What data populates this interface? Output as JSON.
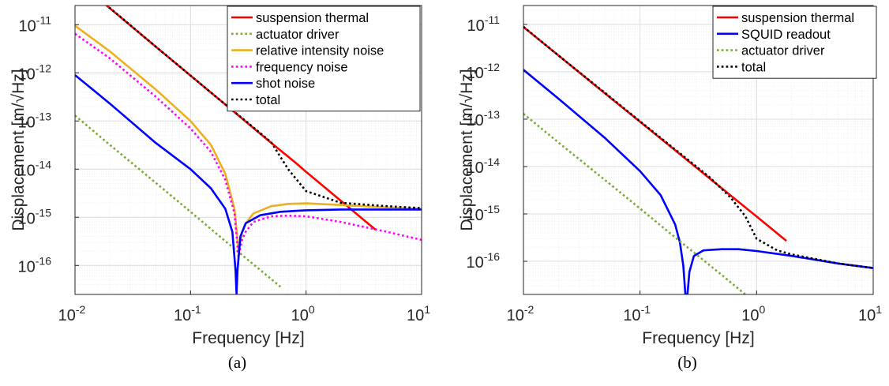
{
  "chart_data": [
    {
      "type": "line",
      "caption": "(a)",
      "xlabel": "Frequency [Hz]",
      "ylabel": "Displacement [m/√Hz]",
      "xscale": "log",
      "yscale": "log",
      "xlim": [
        0.01,
        10
      ],
      "ylim": [
        2.5e-17,
        2.5e-11
      ],
      "xticks": [
        {
          "base": "10",
          "exp": "-2"
        },
        {
          "base": "10",
          "exp": "-1"
        },
        {
          "base": "10",
          "exp": "0"
        },
        {
          "base": "10",
          "exp": "1"
        }
      ],
      "yticks": [
        {
          "base": "10",
          "exp": "-16"
        },
        {
          "base": "10",
          "exp": "-15"
        },
        {
          "base": "10",
          "exp": "-14"
        },
        {
          "base": "10",
          "exp": "-13"
        },
        {
          "base": "10",
          "exp": "-12"
        },
        {
          "base": "10",
          "exp": "-11"
        }
      ],
      "grid": true,
      "legend_position": "top-right",
      "series": [
        {
          "name": "suspension thermal",
          "color": "#ff0000",
          "style": "solid",
          "x": [
            0.01,
            0.02,
            0.05,
            0.1,
            0.2,
            0.5,
            0.8,
            1,
            2,
            4
          ],
          "y": [
            8.8e-11,
            2.2e-11,
            3.5e-12,
            8.8e-13,
            2.2e-13,
            3.5e-14,
            1.4e-14,
            8.8e-15,
            2.2e-15,
            5.5e-16
          ]
        },
        {
          "name": "actuator driver",
          "color": "#77ac30",
          "style": "dotted",
          "x": [
            0.01,
            0.02,
            0.05,
            0.1,
            0.2,
            0.5,
            0.6
          ],
          "y": [
            1.3e-13,
            3.2e-14,
            5.2e-15,
            1.3e-15,
            3.2e-16,
            5.2e-17,
            3.6e-17
          ]
        },
        {
          "name": "relative intensity noise",
          "color": "#edb120",
          "style": "solid",
          "x": [
            0.01,
            0.02,
            0.05,
            0.1,
            0.15,
            0.2,
            0.24,
            0.26,
            0.28,
            0.3,
            0.35,
            0.5,
            0.7,
            1,
            2,
            5,
            10
          ],
          "y": [
            9.5e-12,
            2.8e-12,
            4.5e-13,
            1e-13,
            3.2e-14,
            8e-15,
            1.5e-15,
            2e-16,
            5e-16,
            7.5e-16,
            1.2e-15,
            1.7e-15,
            1.9e-15,
            1.95e-15,
            1.8e-15,
            1.6e-15,
            1.5e-15
          ]
        },
        {
          "name": "frequency noise",
          "color": "#ff00ff",
          "style": "dotted",
          "x": [
            0.01,
            0.02,
            0.05,
            0.1,
            0.15,
            0.2,
            0.24,
            0.26,
            0.28,
            0.3,
            0.35,
            0.5,
            0.7,
            1,
            2,
            5,
            10
          ],
          "y": [
            6.5e-12,
            2e-12,
            3.2e-13,
            7e-14,
            2.3e-14,
            6e-15,
            1.2e-15,
            1.5e-16,
            3.5e-16,
            5e-16,
            8e-16,
            1.05e-15,
            1.08e-15,
            1.05e-15,
            8e-16,
            5e-16,
            3.4e-16
          ]
        },
        {
          "name": "shot noise",
          "color": "#0000ff",
          "style": "solid",
          "x": [
            0.01,
            0.02,
            0.05,
            0.1,
            0.15,
            0.2,
            0.23,
            0.245,
            0.25,
            0.255,
            0.27,
            0.3,
            0.4,
            0.6,
            1,
            2,
            5,
            10
          ],
          "y": [
            9e-13,
            2.3e-13,
            3.5e-14,
            1e-14,
            4e-15,
            1.5e-15,
            5e-16,
            8e-17,
            2.6e-17,
            8e-17,
            4e-16,
            7.5e-16,
            1.1e-15,
            1.3e-15,
            1.4e-15,
            1.45e-15,
            1.45e-15,
            1.45e-15
          ]
        },
        {
          "name": "total",
          "color": "#000000",
          "style": "dotted",
          "x": [
            0.016,
            0.05,
            0.1,
            0.2,
            0.3,
            0.5,
            0.7,
            1,
            2,
            5,
            10
          ],
          "y": [
            3.5e-11,
            3.5e-12,
            8.8e-13,
            2.2e-13,
            1e-13,
            3.6e-14,
            1e-14,
            3.5e-15,
            2e-15,
            1.7e-15,
            1.55e-15
          ]
        }
      ]
    },
    {
      "type": "line",
      "caption": "(b)",
      "xlabel": "Frequency [Hz]",
      "ylabel": "Displacement [m/√Hz]",
      "xscale": "log",
      "yscale": "log",
      "xlim": [
        0.01,
        10
      ],
      "ylim": [
        2e-17,
        2.5e-11
      ],
      "xticks": [
        {
          "base": "10",
          "exp": "-2"
        },
        {
          "base": "10",
          "exp": "-1"
        },
        {
          "base": "10",
          "exp": "0"
        },
        {
          "base": "10",
          "exp": "1"
        }
      ],
      "yticks": [
        {
          "base": "10",
          "exp": "-16"
        },
        {
          "base": "10",
          "exp": "-15"
        },
        {
          "base": "10",
          "exp": "-14"
        },
        {
          "base": "10",
          "exp": "-13"
        },
        {
          "base": "10",
          "exp": "-12"
        },
        {
          "base": "10",
          "exp": "-11"
        }
      ],
      "grid": true,
      "legend_position": "top-right",
      "series": [
        {
          "name": "suspension thermal",
          "color": "#ff0000",
          "style": "solid",
          "x": [
            0.01,
            0.02,
            0.05,
            0.1,
            0.2,
            0.5,
            1,
            1.8
          ],
          "y": [
            8.8e-12,
            2.2e-12,
            3.5e-13,
            8.8e-14,
            2.2e-14,
            3.5e-15,
            8.8e-16,
            2.7e-16
          ]
        },
        {
          "name": "SQUID readout",
          "color": "#0000ff",
          "style": "solid",
          "x": [
            0.01,
            0.02,
            0.05,
            0.1,
            0.15,
            0.2,
            0.22,
            0.235,
            0.245,
            0.255,
            0.265,
            0.29,
            0.35,
            0.5,
            0.7,
            1,
            2,
            5,
            10
          ],
          "y": [
            1.1e-12,
            2.7e-13,
            4e-14,
            8e-15,
            2.5e-15,
            6e-16,
            2.5e-16,
            8e-17,
            2e-17,
            2e-17,
            6e-17,
            1.3e-16,
            1.7e-16,
            1.8e-16,
            1.8e-16,
            1.65e-16,
            1.3e-16,
            9e-17,
            7.2e-17
          ]
        },
        {
          "name": "actuator driver",
          "color": "#77ac30",
          "style": "dotted",
          "x": [
            0.01,
            0.02,
            0.05,
            0.1,
            0.2,
            0.5,
            0.8
          ],
          "y": [
            1.3e-13,
            3.2e-14,
            5.2e-15,
            1.3e-15,
            3.2e-16,
            5.2e-17,
            2e-17
          ]
        },
        {
          "name": "total",
          "color": "#000000",
          "style": "dotted",
          "x": [
            0.01,
            0.02,
            0.05,
            0.1,
            0.2,
            0.4,
            0.6,
            0.8,
            1,
            1.5,
            2,
            5,
            10
          ],
          "y": [
            8.9e-12,
            2.2e-12,
            3.6e-13,
            9e-14,
            2.3e-14,
            5.8e-15,
            2.2e-15,
            9e-16,
            3e-16,
            1.7e-16,
            1.4e-16,
            9e-17,
            7.2e-17
          ]
        }
      ]
    }
  ]
}
